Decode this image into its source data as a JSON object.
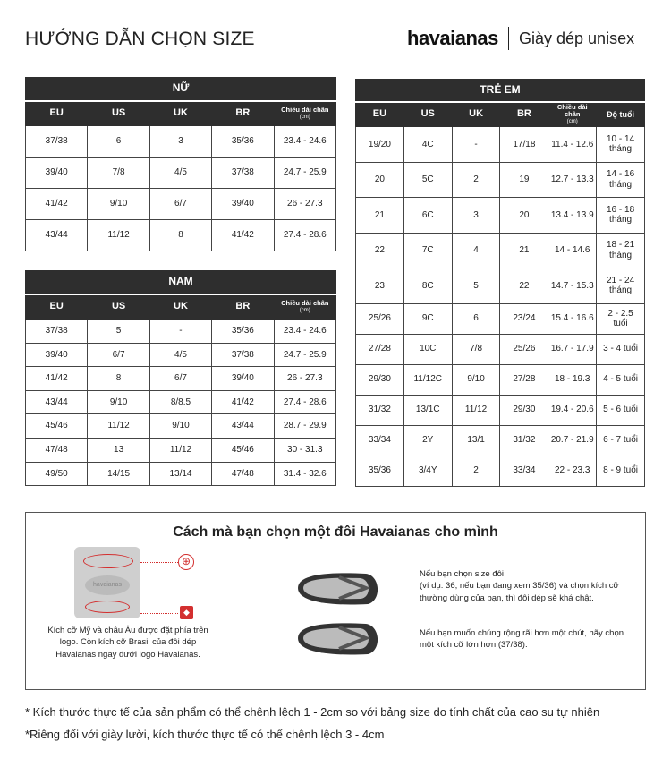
{
  "header": {
    "title": "HƯỚNG DẪN CHỌN SIZE",
    "brand": "havaianas",
    "subtitle": "Giày dép unisex"
  },
  "women": {
    "caption": "NỮ",
    "headers": [
      "EU",
      "US",
      "UK",
      "BR",
      "Chiều dài chân",
      "(cm)"
    ],
    "rows": [
      [
        "37/38",
        "6",
        "3",
        "35/36",
        "23.4 - 24.6"
      ],
      [
        "39/40",
        "7/8",
        "4/5",
        "37/38",
        "24.7 - 25.9"
      ],
      [
        "41/42",
        "9/10",
        "6/7",
        "39/40",
        "26 - 27.3"
      ],
      [
        "43/44",
        "11/12",
        "8",
        "41/42",
        "27.4 - 28.6"
      ]
    ]
  },
  "men": {
    "caption": "NAM",
    "headers": [
      "EU",
      "US",
      "UK",
      "BR",
      "Chiều dài chân",
      "(cm)"
    ],
    "rows": [
      [
        "37/38",
        "5",
        "-",
        "35/36",
        "23.4 - 24.6"
      ],
      [
        "39/40",
        "6/7",
        "4/5",
        "37/38",
        "24.7 - 25.9"
      ],
      [
        "41/42",
        "8",
        "6/7",
        "39/40",
        "26 - 27.3"
      ],
      [
        "43/44",
        "9/10",
        "8/8.5",
        "41/42",
        "27.4 - 28.6"
      ],
      [
        "45/46",
        "11/12",
        "9/10",
        "43/44",
        "28.7 - 29.9"
      ],
      [
        "47/48",
        "13",
        "11/12",
        "45/46",
        "30 - 31.3"
      ],
      [
        "49/50",
        "14/15",
        "13/14",
        "47/48",
        "31.4 - 32.6"
      ]
    ]
  },
  "kids": {
    "caption": "TRẺ EM",
    "headers": [
      "EU",
      "US",
      "UK",
      "BR",
      "Chiều dài chân",
      "(cm)",
      "Độ tuổi"
    ],
    "rows": [
      [
        "19/20",
        "4C",
        "-",
        "17/18",
        "11.4 - 12.6",
        "10 - 14 tháng"
      ],
      [
        "20",
        "5C",
        "2",
        "19",
        "12.7 - 13.3",
        "14 - 16 tháng"
      ],
      [
        "21",
        "6C",
        "3",
        "20",
        "13.4 - 13.9",
        "16 - 18 tháng"
      ],
      [
        "22",
        "7C",
        "4",
        "21",
        "14 - 14.6",
        "18 - 21 tháng"
      ],
      [
        "23",
        "8C",
        "5",
        "22",
        "14.7 - 15.3",
        "21 - 24 tháng"
      ],
      [
        "25/26",
        "9C",
        "6",
        "23/24",
        "15.4 - 16.6",
        "2 - 2.5 tuổi"
      ],
      [
        "27/28",
        "10C",
        "7/8",
        "25/26",
        "16.7 - 17.9",
        "3 - 4 tuổi"
      ],
      [
        "29/30",
        "11/12C",
        "9/10",
        "27/28",
        "18 - 19.3",
        "4 - 5 tuổi"
      ],
      [
        "31/32",
        "13/1C",
        "11/12",
        "29/30",
        "19.4 - 20.6",
        "5 - 6 tuổi"
      ],
      [
        "33/34",
        "2Y",
        "13/1",
        "31/32",
        "20.7 - 21.9",
        "6 - 7 tuổi"
      ],
      [
        "35/36",
        "3/4Y",
        "2",
        "33/34",
        "22 - 23.3",
        "8 - 9 tuổi"
      ]
    ]
  },
  "guide": {
    "title": "Cách mà bạn chọn một đôi Havaianas cho mình",
    "sole_logo": "havaianas",
    "sole_note": "Kích cỡ Mỹ và châu Âu được đặt phía trên logo. Còn kích cỡ Brasil của đôi dép Havaianas ngay dưới logo Havaianas.",
    "tip1": "Nếu bạn chọn size đôi\n(ví dụ: 36, nếu bạn đang xem 35/36) và chọn kích cỡ thường dùng của bạn, thì đôi dép sẽ khá chật.",
    "tip2": "Nếu bạn muốn chúng rộng rãi hơn một chút, hãy chọn một kích cỡ lớn hơn (37/38).",
    "accent": "#d32f2f"
  },
  "footnotes": [
    "* Kích thước thực tế của sản phẩm có thể chênh lệch 1 - 2cm so với bảng size do tính chất của cao su tự nhiên",
    "*Riêng đối với giày lười, kích thước thực tế có thể chênh lệch 3 - 4cm"
  ]
}
